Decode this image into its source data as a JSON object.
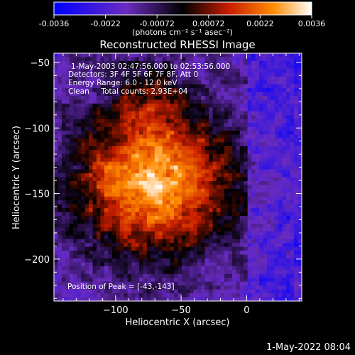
{
  "colorbar": {
    "ticks": [
      "-0.0036",
      "-0.0022",
      "-0.00072",
      "0.00072",
      "0.0022",
      "0.0036"
    ],
    "units": "(photons cm⁻² s⁻¹ asec⁻²)",
    "range": [
      -0.0036,
      0.0036
    ]
  },
  "info": {
    "time": "1-May-2003 02:47:56.000 to 02:53:56.000",
    "detectors": "Detectors: 3F 4F 5F 6F 7F 8F, Att 0",
    "energy": "Energy Range: 6.0 - 12.0 keV",
    "clean": "Clean     Total counts: 2.93E+04",
    "peak": "Position of Peak = [-43,-143]"
  },
  "footer": {
    "timestamp": "1-May-2022 08:04"
  },
  "chart_data": {
    "type": "heatmap",
    "title": "Reconstructed RHESSI Image",
    "xlabel": "Heliocentric X (arcsec)",
    "ylabel": "Heliocentric Y (arcsec)",
    "xlim": [
      -147,
      42
    ],
    "ylim": [
      -232,
      -43
    ],
    "xticks": [
      -100,
      -50,
      0
    ],
    "yticks": [
      -50,
      -100,
      -150,
      -200
    ],
    "peak": [
      -43,
      -143
    ],
    "colormap": [
      "#0000ff",
      "#6a2cc0",
      "#000000",
      "#c81e00",
      "#ff8c00",
      "#ffffff"
    ]
  }
}
